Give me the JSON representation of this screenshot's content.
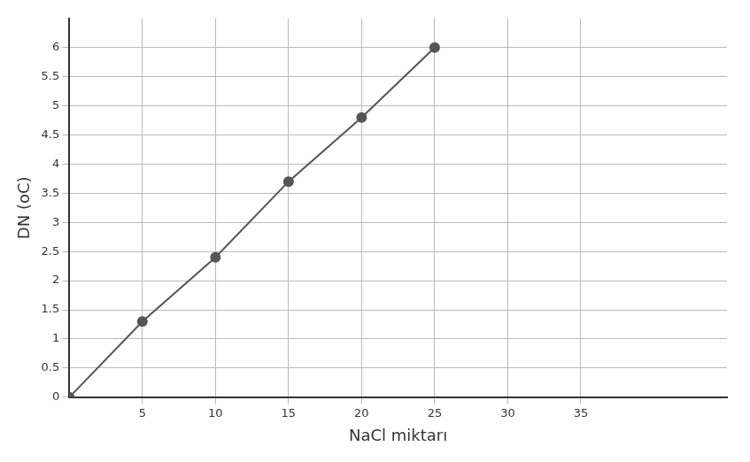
{
  "chart_data": {
    "type": "line",
    "x_label": "NaCl miktarı",
    "y_label": "DN (oC)",
    "x": [
      0,
      5,
      10,
      15,
      20,
      25
    ],
    "values": [
      0,
      1.3,
      2.4,
      3.7,
      4.8,
      6
    ],
    "color": "#555555",
    "marker": "circle",
    "xlim": [
      0,
      45
    ],
    "xticks": [
      5,
      10,
      15,
      20,
      25,
      30,
      35
    ],
    "ylim": [
      0,
      6.5
    ],
    "yticks": [
      0,
      0.5,
      1,
      1.5,
      2,
      2.5,
      3,
      3.5,
      4,
      4.5,
      5,
      5.5,
      6
    ],
    "grid": true
  }
}
